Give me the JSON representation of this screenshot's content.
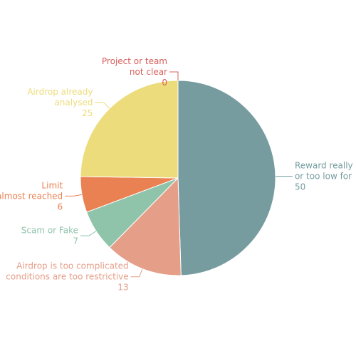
{
  "chart_data": {
    "type": "pie",
    "categories": [
      "Reward really\nor too low for",
      "Airdrop is too complicated\nconditions are too restrictive",
      "Scam or Fake",
      "Limit\nalmost reached",
      "Airdrop already\nanalysed",
      "Project or team\nnot clear"
    ],
    "values": [
      50,
      13,
      7,
      6,
      25,
      0
    ],
    "colors": [
      "#769ca0",
      "#e59e88",
      "#8fc4aa",
      "#ea8153",
      "#eddc7b",
      "#d6605c"
    ],
    "start_angle": 0,
    "direction": "clockwise"
  }
}
